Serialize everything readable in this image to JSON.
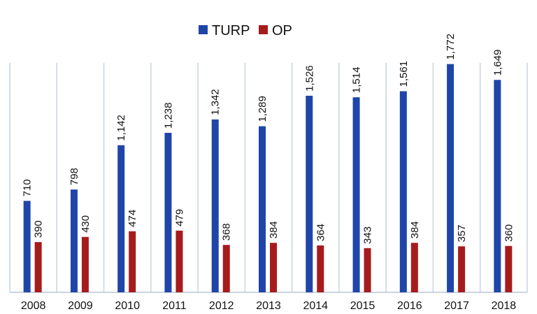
{
  "chart_data": {
    "type": "bar",
    "categories": [
      "2008",
      "2009",
      "2010",
      "2011",
      "2012",
      "2013",
      "2014",
      "2015",
      "2016",
      "2017",
      "2018"
    ],
    "series": [
      {
        "name": "TURP",
        "color": "#1f45a8",
        "values": [
          710,
          798,
          1142,
          1238,
          1342,
          1289,
          1526,
          1514,
          1561,
          1772,
          1649
        ],
        "labels": [
          "710",
          "798",
          "1,142",
          "1,238",
          "1,342",
          "1,289",
          "1,526",
          "1,514",
          "1,561",
          "1,772",
          "1,649"
        ]
      },
      {
        "name": "OP",
        "color": "#a61c1c",
        "values": [
          390,
          430,
          474,
          479,
          368,
          384,
          364,
          343,
          384,
          357,
          360
        ],
        "labels": [
          "390",
          "430",
          "474",
          "479",
          "368",
          "384",
          "364",
          "343",
          "384",
          "357",
          "360"
        ]
      }
    ],
    "legend_position": "top-center",
    "grid": "vertical category separators",
    "ylim": [
      0,
      1900
    ]
  }
}
